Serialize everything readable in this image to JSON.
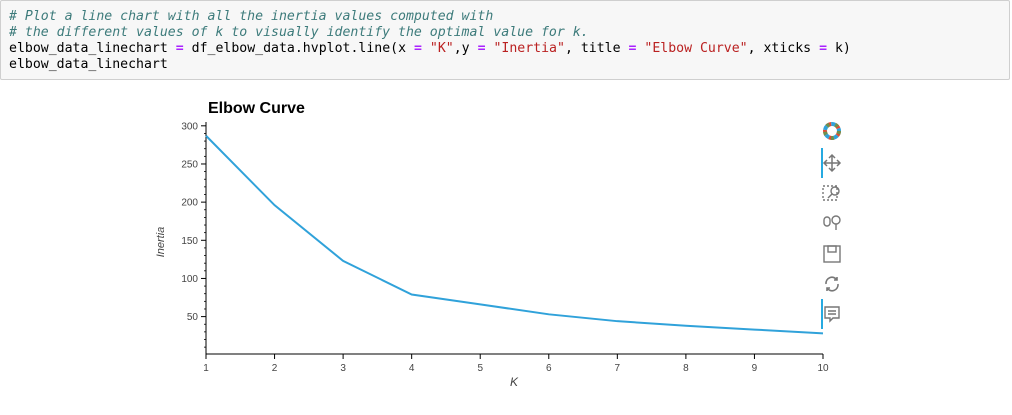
{
  "code": {
    "line1_comment": "# Plot a line chart with all the inertia values computed with",
    "line2_comment": "# the different values of k to visually identify the optimal value for k.",
    "line3_var": "elbow_data_linechart",
    "line3_eq": "=",
    "line3_call": "df_elbow_data.hvplot.line(x",
    "line3_eq2": "=",
    "line3_xval": "\"K\"",
    "line3_y": ",y",
    "line3_eq3": "=",
    "line3_yval": "\"Inertia\"",
    "line3_title": ", title",
    "line3_eq4": "=",
    "line3_titleval": "\"Elbow Curve\"",
    "line3_xticks": ", xticks",
    "line3_eq5": "=",
    "line3_end": "k)",
    "line4": "elbow_data_linechart"
  },
  "chart_data": {
    "type": "line",
    "title": "Elbow Curve",
    "xlabel": "K",
    "ylabel": "Inertia",
    "x": [
      1,
      2,
      3,
      4,
      5,
      6,
      7,
      8,
      9,
      10
    ],
    "series": [
      {
        "values": [
          287,
          196,
          123,
          79,
          66,
          53,
          44,
          38,
          33,
          28
        ],
        "color": "#30a2da"
      }
    ],
    "xticks": [
      "1",
      "2",
      "3",
      "4",
      "5",
      "6",
      "7",
      "8",
      "9",
      "10"
    ],
    "yticks": [
      "50",
      "100",
      "150",
      "200",
      "250",
      "300"
    ],
    "xlim": [
      1,
      10
    ],
    "ylim": [
      1,
      305
    ]
  },
  "toolbar": {
    "tools": [
      "bokeh-logo-icon",
      "pan-icon",
      "box-zoom-icon",
      "wheel-zoom-icon",
      "save-icon",
      "reset-icon",
      "hover-icon"
    ]
  }
}
